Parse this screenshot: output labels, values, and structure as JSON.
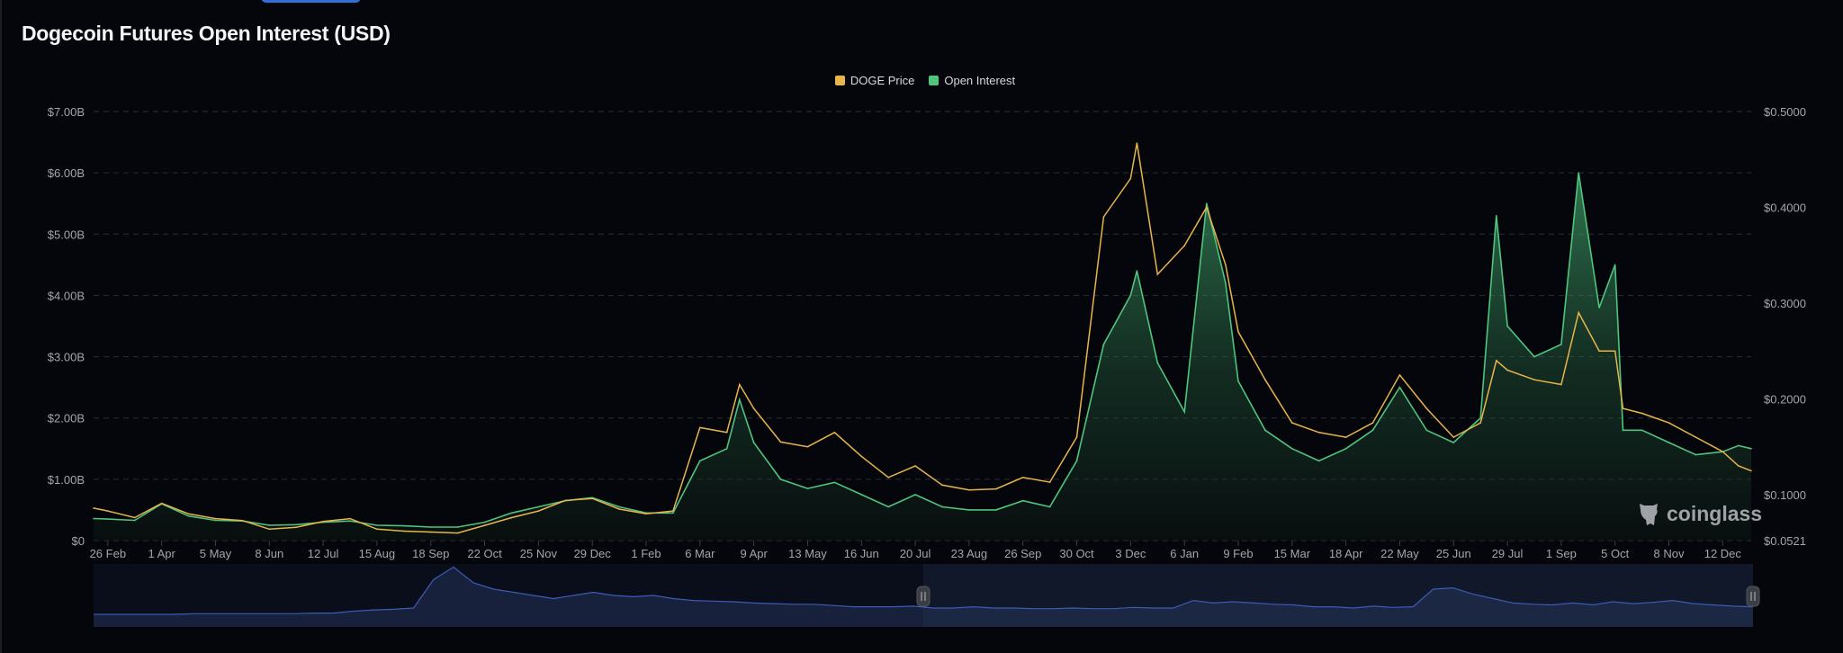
{
  "title": "Dogecoin Futures Open Interest (USD)",
  "watermark": "coinglass",
  "colors": {
    "background": "#05060b",
    "price": "#e8b54a",
    "open_interest": "#4fc47f",
    "navigator": "#3b5bb5",
    "grid": "#2a2d35"
  },
  "chart_data": {
    "type": "line",
    "title": "Dogecoin Futures Open Interest (USD)",
    "legend_position": "top-center",
    "grid": true,
    "x_range": [
      "2023-02-17",
      "2025-12-30"
    ],
    "x_tick_labels": [
      "26 Feb",
      "1 Apr",
      "5 May",
      "8 Jun",
      "12 Jul",
      "15 Aug",
      "18 Sep",
      "22 Oct",
      "25 Nov",
      "29 Dec",
      "1 Feb",
      "6 Mar",
      "9 Apr",
      "13 May",
      "16 Jun",
      "20 Jul",
      "23 Aug",
      "26 Sep",
      "30 Oct",
      "3 Dec",
      "6 Jan",
      "9 Feb",
      "15 Mar",
      "18 Apr",
      "22 May",
      "25 Jun",
      "29 Jul",
      "1 Sep",
      "5 Oct",
      "8 Nov",
      "12 Dec"
    ],
    "x_tick_dates": [
      "2023-02-26",
      "2023-04-01",
      "2023-05-05",
      "2023-06-08",
      "2023-07-12",
      "2023-08-15",
      "2023-09-18",
      "2023-10-22",
      "2023-11-25",
      "2023-12-29",
      "2024-02-01",
      "2024-03-06",
      "2024-04-09",
      "2024-05-13",
      "2024-06-16",
      "2024-07-20",
      "2024-08-23",
      "2024-09-26",
      "2024-10-30",
      "2024-12-03",
      "2025-01-06",
      "2025-02-09",
      "2025-03-15",
      "2025-04-18",
      "2025-05-22",
      "2025-06-25",
      "2025-07-29",
      "2025-09-01",
      "2025-10-05",
      "2025-11-08",
      "2025-12-12"
    ],
    "y_left": {
      "range": [
        0,
        7
      ],
      "unit": "USD billions",
      "tick_labels": [
        "$0",
        "$1.00B",
        "$2.00B",
        "$3.00B",
        "$4.00B",
        "$5.00B",
        "$6.00B",
        "$7.00B"
      ],
      "tick_values": [
        0,
        1,
        2,
        3,
        4,
        5,
        6,
        7
      ]
    },
    "y_right": {
      "range": [
        0.0521,
        0.5
      ],
      "tick_labels": [
        "$0.0521",
        "$0.1000",
        "$0.2000",
        "$0.3000",
        "$0.4000",
        "$0.5000"
      ],
      "tick_values": [
        0.0521,
        0.1,
        0.2,
        0.3,
        0.4,
        0.5
      ]
    },
    "x": [
      "2023-02-17",
      "2023-02-26",
      "2023-03-15",
      "2023-04-01",
      "2023-04-18",
      "2023-05-05",
      "2023-05-22",
      "2023-06-08",
      "2023-06-25",
      "2023-07-12",
      "2023-07-29",
      "2023-08-15",
      "2023-09-01",
      "2023-09-18",
      "2023-10-05",
      "2023-10-22",
      "2023-11-08",
      "2023-11-25",
      "2023-12-12",
      "2023-12-29",
      "2024-01-15",
      "2024-02-01",
      "2024-02-18",
      "2024-03-06",
      "2024-03-23",
      "2024-03-31",
      "2024-04-09",
      "2024-04-26",
      "2024-05-13",
      "2024-05-30",
      "2024-06-16",
      "2024-07-03",
      "2024-07-20",
      "2024-08-06",
      "2024-08-23",
      "2024-09-09",
      "2024-09-26",
      "2024-10-13",
      "2024-10-30",
      "2024-11-16",
      "2024-12-03",
      "2024-12-07",
      "2024-12-20",
      "2025-01-06",
      "2025-01-20",
      "2025-02-01",
      "2025-02-09",
      "2025-02-26",
      "2025-03-15",
      "2025-04-01",
      "2025-04-18",
      "2025-05-05",
      "2025-05-22",
      "2025-06-08",
      "2025-06-25",
      "2025-07-12",
      "2025-07-22",
      "2025-07-29",
      "2025-08-15",
      "2025-09-01",
      "2025-09-12",
      "2025-09-25",
      "2025-10-05",
      "2025-10-10",
      "2025-10-22",
      "2025-11-08",
      "2025-11-25",
      "2025-12-12",
      "2025-12-22",
      "2025-12-30"
    ],
    "series": [
      {
        "name": "DOGE Price",
        "axis": "right",
        "values": [
          0.086,
          0.083,
          0.076,
          0.091,
          0.08,
          0.075,
          0.073,
          0.064,
          0.066,
          0.072,
          0.075,
          0.064,
          0.062,
          0.061,
          0.06,
          0.068,
          0.076,
          0.083,
          0.094,
          0.096,
          0.085,
          0.08,
          0.083,
          0.17,
          0.165,
          0.215,
          0.19,
          0.155,
          0.15,
          0.165,
          0.14,
          0.118,
          0.13,
          0.11,
          0.105,
          0.106,
          0.118,
          0.113,
          0.16,
          0.39,
          0.43,
          0.467,
          0.33,
          0.36,
          0.4,
          0.34,
          0.27,
          0.22,
          0.175,
          0.165,
          0.16,
          0.175,
          0.225,
          0.19,
          0.16,
          0.175,
          0.24,
          0.23,
          0.22,
          0.215,
          0.29,
          0.25,
          0.25,
          0.19,
          0.185,
          0.175,
          0.16,
          0.145,
          0.13,
          0.125
        ]
      },
      {
        "name": "Open Interest",
        "axis": "left",
        "values": [
          0.36,
          0.35,
          0.33,
          0.6,
          0.4,
          0.33,
          0.32,
          0.25,
          0.26,
          0.3,
          0.32,
          0.25,
          0.24,
          0.22,
          0.22,
          0.3,
          0.45,
          0.55,
          0.65,
          0.7,
          0.55,
          0.45,
          0.45,
          1.3,
          1.5,
          2.3,
          1.6,
          1.0,
          0.85,
          0.95,
          0.75,
          0.55,
          0.75,
          0.55,
          0.5,
          0.5,
          0.65,
          0.55,
          1.3,
          3.2,
          4.0,
          4.4,
          2.9,
          2.1,
          5.5,
          4.2,
          2.6,
          1.8,
          1.5,
          1.3,
          1.5,
          1.8,
          2.5,
          1.8,
          1.6,
          2.0,
          5.3,
          3.5,
          3.0,
          3.2,
          6.0,
          3.8,
          4.5,
          1.8,
          1.8,
          1.6,
          1.4,
          1.45,
          1.55,
          1.5
        ]
      }
    ],
    "navigator": {
      "selected_range_fraction": [
        0.5,
        1.0
      ],
      "values": [
        0.2,
        0.2,
        0.2,
        0.2,
        0.2,
        0.21,
        0.21,
        0.21,
        0.21,
        0.21,
        0.21,
        0.22,
        0.22,
        0.25,
        0.27,
        0.28,
        0.3,
        0.75,
        0.95,
        0.7,
        0.6,
        0.55,
        0.5,
        0.45,
        0.5,
        0.55,
        0.5,
        0.48,
        0.5,
        0.45,
        0.42,
        0.41,
        0.4,
        0.38,
        0.37,
        0.36,
        0.36,
        0.34,
        0.32,
        0.32,
        0.32,
        0.33,
        0.3,
        0.3,
        0.32,
        0.3,
        0.3,
        0.29,
        0.29,
        0.3,
        0.29,
        0.29,
        0.31,
        0.3,
        0.3,
        0.42,
        0.38,
        0.4,
        0.38,
        0.36,
        0.35,
        0.32,
        0.32,
        0.3,
        0.33,
        0.31,
        0.32,
        0.6,
        0.62,
        0.52,
        0.45,
        0.38,
        0.36,
        0.35,
        0.38,
        0.35,
        0.4,
        0.37,
        0.39,
        0.42,
        0.37,
        0.35,
        0.33,
        0.32
      ]
    }
  }
}
